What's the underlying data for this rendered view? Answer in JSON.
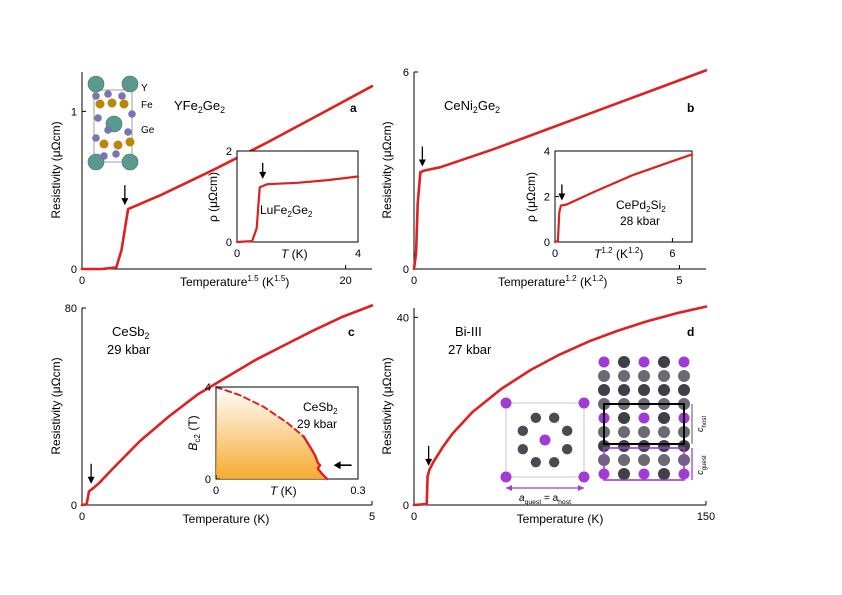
{
  "chart_data": [
    {
      "panel": "a",
      "type": "line",
      "label": "YFe2Ge2",
      "xlabel": "Temperature",
      "xlabel_sup": "1.5",
      "xunit": "(K",
      "xunit_sup": "1.5",
      "ylabel": "Resistivity  (μΩcm)",
      "xlim": [
        0,
        22
      ],
      "ylim": [
        0,
        1.25
      ],
      "xticks": [
        "0",
        "20"
      ],
      "yticks": [
        "0",
        "1"
      ],
      "series": [
        {
          "color": "#e02020",
          "x": [
            0,
            1.5,
            2.6,
            3.0,
            3.5,
            6,
            10,
            14,
            18,
            22
          ],
          "y": [
            0,
            0,
            0.01,
            0.12,
            0.38,
            0.47,
            0.63,
            0.8,
            0.98,
            1.16
          ]
        }
      ],
      "transition_arrow": {
        "x": 3.1,
        "y": 0.38
      },
      "structure_labels": [
        "Y",
        "Fe",
        "Ge"
      ],
      "inset": {
        "label": "LuFe2Ge2",
        "xlabel": "T  (K)",
        "ylabel": "ρ  (μΩcm)",
        "xlim": [
          0,
          4
        ],
        "ylim": [
          0,
          2
        ],
        "xticks": [
          "0",
          "4"
        ],
        "yticks": [
          "0",
          "2"
        ],
        "series": [
          {
            "color": "#e02020",
            "x": [
              0,
              0.5,
              0.65,
              0.75,
              1.0,
              2.0,
              3.0,
              4.0
            ],
            "y": [
              0,
              0.02,
              0.3,
              1.2,
              1.27,
              1.3,
              1.36,
              1.44
            ]
          }
        ],
        "transition_arrow": {
          "x": 0.85,
          "y": 1.3
        }
      }
    },
    {
      "panel": "b",
      "type": "line",
      "label": "CeNi2Ge2",
      "xlabel": "Temperature",
      "xlabel_sup": "1.2",
      "xunit": "(K",
      "xunit_sup": "1.2",
      "ylabel": "Resistivity  (μΩcm)",
      "xlim": [
        0,
        5.5
      ],
      "ylim": [
        0,
        6
      ],
      "xticks": [
        "0",
        "5"
      ],
      "yticks": [
        "0",
        "6"
      ],
      "series": [
        {
          "color": "#e02020",
          "x": [
            0,
            0.04,
            0.07,
            0.12,
            0.2,
            0.5,
            1.5,
            2.5,
            3.5,
            4.5,
            5.5
          ],
          "y": [
            0,
            0.5,
            2.0,
            2.95,
            3.0,
            3.1,
            3.65,
            4.25,
            4.85,
            5.45,
            6.05
          ]
        }
      ],
      "transition_arrow": {
        "x": 0.12,
        "y": 3.0
      },
      "inset": {
        "label": "CePd2Si2",
        "pressure": "28 kbar",
        "xlabel": "T",
        "xlabel_sup": "1.2",
        "xunit": "(K",
        "xunit_sup": "1.2",
        "ylabel": "ρ  (μΩcm)",
        "xlim": [
          0,
          7
        ],
        "ylim": [
          0,
          4
        ],
        "xticks": [
          "0",
          "6"
        ],
        "yticks": [
          "0",
          "2",
          "4"
        ],
        "series": [
          {
            "color": "#e02020",
            "x": [
              0,
              0.15,
              0.22,
              0.3,
              0.6,
              2,
              4,
              6,
              7
            ],
            "y": [
              0,
              0.05,
              1.3,
              1.6,
              1.65,
              2.2,
              2.95,
              3.55,
              3.85
            ]
          }
        ],
        "transition_arrow": {
          "x": 0.3,
          "y": 1.65
        }
      }
    },
    {
      "panel": "c",
      "type": "line",
      "label": "CeSb2",
      "pressure": "29 kbar",
      "xlabel": "Temperature  (K)",
      "ylabel": "Resistivity  (μΩcm)",
      "xlim": [
        0,
        5
      ],
      "ylim": [
        0,
        80
      ],
      "xticks": [
        "0",
        "5"
      ],
      "yticks": [
        "0",
        "80"
      ],
      "series": [
        {
          "color": "#e02020",
          "x": [
            0,
            0.08,
            0.12,
            0.2,
            0.3,
            0.5,
            1,
            1.5,
            2,
            2.5,
            3,
            3.5,
            4,
            4.5,
            5
          ],
          "y": [
            0,
            0.3,
            5.5,
            7,
            9,
            14,
            26,
            36,
            45,
            52,
            59,
            65,
            71,
            76.5,
            81
          ]
        }
      ],
      "transition_arrow": {
        "x": 0.14,
        "y": 7
      },
      "inset": {
        "label": "CeSb2",
        "pressure": "29 kbar",
        "xlabel": "T  (K)",
        "ylabel": "B",
        "ylabel_sub": "c2",
        "yunit": "(T)",
        "xlim": [
          0,
          0.3
        ],
        "ylim": [
          0,
          4
        ],
        "xticks": [
          "0",
          "0.3"
        ],
        "yticks": [
          "0",
          "4"
        ],
        "dashed": {
          "color": "#e02020",
          "x": [
            0,
            0.05,
            0.1,
            0.15,
            0.185
          ],
          "y": [
            4,
            3.65,
            3.15,
            2.45,
            1.85
          ]
        },
        "solid": {
          "color": "#e02020",
          "x": [
            0.185,
            0.2,
            0.21,
            0.215,
            0.22,
            0.215,
            0.225,
            0.235
          ],
          "y": [
            1.85,
            1.35,
            1.0,
            0.7,
            0.6,
            0.45,
            0.2,
            0
          ]
        },
        "arrow": {
          "x": 0.24,
          "y": 0.6
        }
      }
    },
    {
      "panel": "d",
      "type": "line",
      "label": "Bi-III",
      "pressure": "27 kbar",
      "xlabel": "Temperature  (K)",
      "ylabel": "Resistivity  (μΩcm)",
      "xlim": [
        0,
        150
      ],
      "ylim": [
        0,
        42
      ],
      "xticks": [
        "0",
        "150"
      ],
      "yticks": [
        "0",
        "40"
      ],
      "series": [
        {
          "color": "#e02020",
          "x": [
            0,
            6.5,
            7,
            8,
            10,
            15,
            20,
            30,
            45,
            60,
            75,
            90,
            105,
            120,
            135,
            150
          ],
          "y": [
            0,
            0.2,
            6.2,
            7.6,
            9.2,
            12.5,
            15.3,
            19.8,
            24.8,
            28.8,
            32.1,
            34.9,
            37.2,
            39.2,
            40.9,
            42.3
          ]
        }
      ],
      "transition_arrow": {
        "x": 7,
        "y": 7.5
      },
      "structure_labels": {
        "guest_eq": "a",
        "guest_eq_sub1": "guest",
        "eq": " = a",
        "host_sub": "host",
        "c_host": "c",
        "c_host_sub": "host",
        "c_guest": "c",
        "c_guest_sub": "guest"
      }
    }
  ],
  "colors": {
    "curve": "#e02020",
    "arrow": "#000000",
    "purple": "#a23ad6",
    "gray": "#4a4a52",
    "orange": "#f5a623"
  }
}
